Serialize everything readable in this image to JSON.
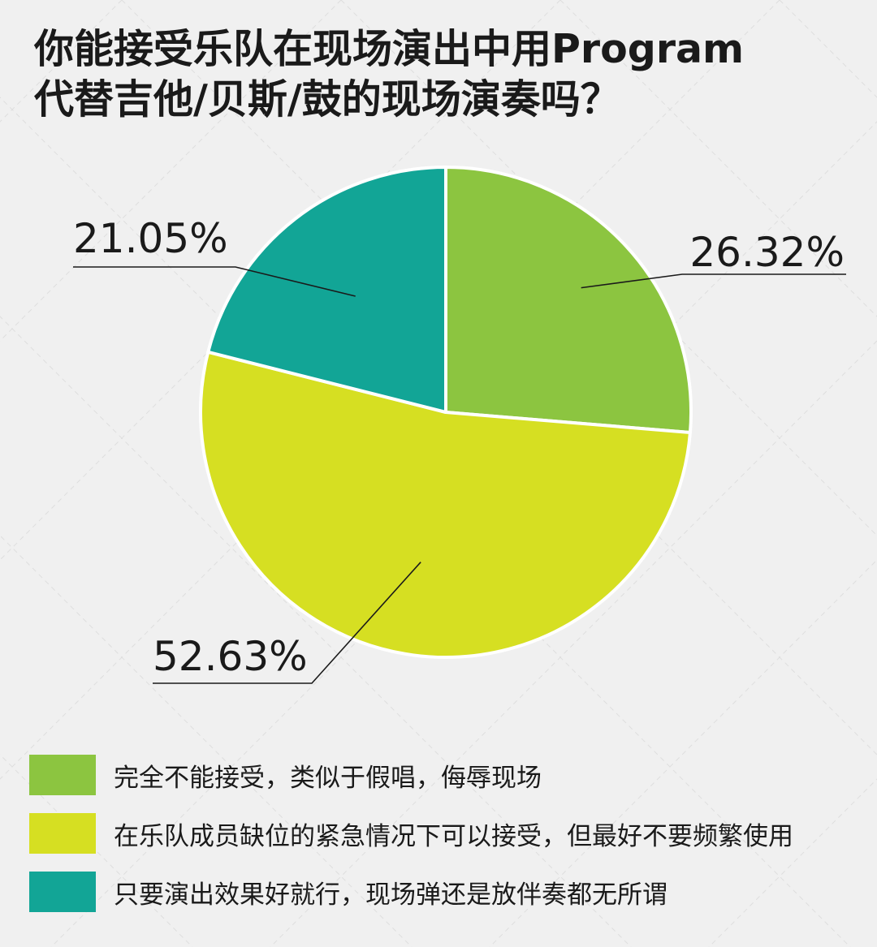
{
  "title_lines": [
    "你能接受乐队在现场演出中用Program",
    "代替吉他/贝斯/鼓的现场演奏吗？"
  ],
  "chart_data": {
    "type": "pie",
    "title": "你能接受乐队在现场演出中用Program代替吉他/贝斯/鼓的现场演奏吗？",
    "start": "12 o'clock, clockwise",
    "slices": [
      {
        "label": "完全不能接受，类似于假唱，侮辱现场",
        "value": 26.32,
        "value_label": "26.32%",
        "color": "#8cc540"
      },
      {
        "label": "在乐队成员缺位的紧急情况下可以接受，但最好不要频繁使用",
        "value": 52.63,
        "value_label": "52.63%",
        "color": "#d6df22"
      },
      {
        "label": "只要演出效果好就行，现场弹还是放伴奏都无所谓",
        "value": 21.05,
        "value_label": "21.05%",
        "color": "#12a596"
      }
    ],
    "legend_placement": "bottom"
  }
}
